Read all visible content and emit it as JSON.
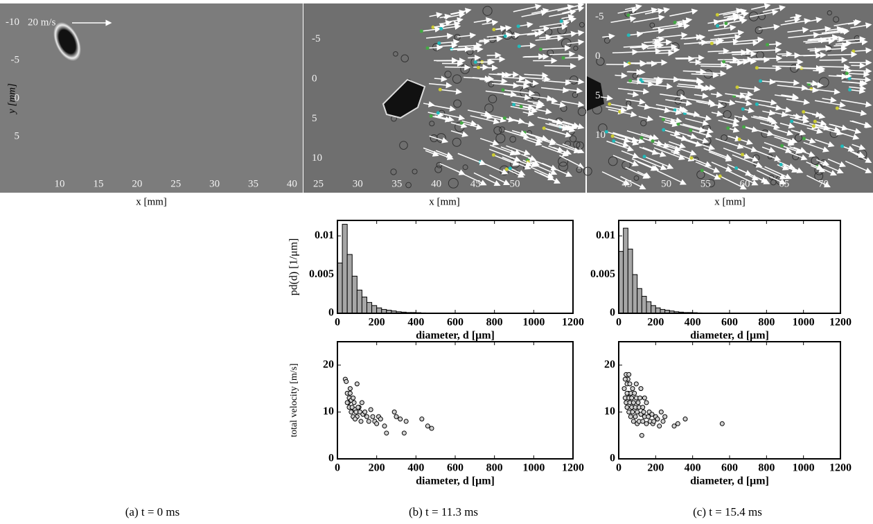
{
  "chart_data": [
    {
      "type": "image",
      "caption": "(a) t = 0 ms",
      "xlabel": "x [mm]",
      "ylabel": "y [mm]",
      "annotation": "20 m/s",
      "xlim": [
        2.3,
        41.4
      ],
      "ylim": [
        -12.5,
        12.4
      ],
      "xticks": [
        10,
        15,
        20,
        25,
        30,
        35,
        40
      ],
      "yticks": [
        -10,
        -5,
        0,
        5
      ]
    },
    {
      "type": "image",
      "caption": "(b) t = 11.3 ms",
      "xlabel": "x [mm]",
      "xlim": [
        23.1,
        59.0
      ],
      "ylim": [
        -9.5,
        14.3
      ],
      "xticks": [
        25,
        30,
        35,
        40,
        45,
        50
      ],
      "yticks": [
        -5,
        0,
        5,
        10
      ]
    },
    {
      "type": "image",
      "caption": "(c) t = 15.4 ms",
      "xlabel": "x [mm]",
      "xlim": [
        39.9,
        76.3
      ],
      "ylim": [
        -6.7,
        17.2
      ],
      "xticks": [
        45,
        50,
        55,
        60,
        65,
        70
      ],
      "yticks": [
        -5,
        0,
        5,
        10
      ]
    },
    {
      "type": "histogram",
      "xlabel": "diameter, d [μm]",
      "ylabel": "pd(d) [1/μm]",
      "bins": [
        0,
        25,
        50,
        75,
        100,
        125,
        150,
        175,
        200,
        225,
        250,
        275,
        300,
        325,
        350,
        375,
        400,
        425,
        450
      ],
      "values": [
        0.0065,
        0.0115,
        0.0076,
        0.0048,
        0.003,
        0.0021,
        0.0014,
        0.001,
        0.0007,
        0.0005,
        0.0004,
        0.0003,
        0.0002,
        0.00015,
        0.0001,
        0.0001,
        8e-05,
        5e-05
      ],
      "xlim": [
        0,
        1200
      ],
      "ylim": [
        0,
        0.012
      ],
      "xticks": [
        0,
        200,
        400,
        600,
        800,
        1000,
        1200
      ],
      "yticks": [
        0,
        0.005,
        0.01
      ]
    },
    {
      "type": "histogram",
      "xlabel": "diameter, d [μm]",
      "bins": [
        0,
        25,
        50,
        75,
        100,
        125,
        150,
        175,
        200,
        225,
        250,
        275,
        300,
        325,
        350,
        375,
        400,
        425,
        450
      ],
      "values": [
        0.008,
        0.011,
        0.0083,
        0.005,
        0.0032,
        0.0022,
        0.0015,
        0.001,
        0.0007,
        0.0005,
        0.0004,
        0.0003,
        0.0002,
        0.00015,
        0.0001,
        0.0001,
        8e-05,
        5e-05
      ],
      "xlim": [
        0,
        1200
      ],
      "ylim": [
        0,
        0.012
      ],
      "xticks": [
        0,
        200,
        400,
        600,
        800,
        1000,
        1200
      ],
      "yticks": [
        0,
        0.005,
        0.01
      ]
    },
    {
      "type": "scatter",
      "xlabel": "diameter, d [μm]",
      "ylabel": "total velocity [m/s]",
      "x": [
        40,
        45,
        50,
        55,
        60,
        60,
        65,
        70,
        70,
        75,
        80,
        80,
        85,
        90,
        95,
        100,
        100,
        110,
        115,
        120,
        125,
        130,
        140,
        150,
        160,
        170,
        180,
        190,
        200,
        210,
        220,
        240,
        250,
        290,
        300,
        320,
        340,
        350,
        430,
        460,
        480,
        50,
        65,
        90,
        105
      ],
      "values": [
        17,
        16.5,
        14,
        12,
        13,
        11,
        15,
        12.5,
        10,
        11,
        9,
        13,
        12,
        10.5,
        10,
        16,
        9,
        11,
        10,
        8,
        12,
        9.5,
        10,
        9,
        8,
        10.5,
        9,
        8,
        7.5,
        9,
        8.5,
        7,
        5.5,
        10,
        9,
        8.5,
        5.5,
        8,
        8.5,
        7,
        6.5,
        12,
        14,
        8.5,
        11
      ],
      "xlim": [
        0,
        1200
      ],
      "ylim": [
        0,
        25
      ],
      "xticks": [
        0,
        200,
        400,
        600,
        800,
        1000,
        1200
      ],
      "yticks": [
        0,
        10,
        20
      ]
    },
    {
      "type": "scatter",
      "xlabel": "diameter, d [μm]",
      "x": [
        30,
        35,
        40,
        40,
        45,
        45,
        50,
        50,
        55,
        55,
        60,
        60,
        65,
        65,
        70,
        70,
        75,
        75,
        80,
        80,
        85,
        90,
        90,
        95,
        100,
        100,
        105,
        110,
        110,
        115,
        120,
        125,
        130,
        130,
        135,
        140,
        150,
        150,
        160,
        165,
        170,
        180,
        185,
        190,
        200,
        210,
        220,
        230,
        240,
        250,
        300,
        320,
        360,
        560,
        35,
        45,
        55,
        120,
        140,
        95
      ],
      "values": [
        15,
        13,
        18,
        12,
        16,
        11,
        17,
        14,
        13,
        10,
        16,
        12,
        14,
        9,
        13,
        11,
        15,
        10,
        12,
        8,
        14,
        11,
        9,
        13,
        10,
        7.5,
        12,
        11,
        8,
        13,
        9.5,
        5,
        11,
        8,
        10,
        9,
        12,
        7.5,
        9,
        10,
        8,
        9.5,
        7.5,
        8,
        9,
        8.5,
        7,
        10,
        8,
        9,
        7,
        7.5,
        8.5,
        7.5,
        17,
        14,
        18,
        15,
        13,
        16
      ],
      "xlim": [
        0,
        1200
      ],
      "ylim": [
        0,
        25
      ],
      "xticks": [
        0,
        200,
        400,
        600,
        800,
        1000,
        1200
      ],
      "yticks": [
        0,
        10,
        20
      ]
    }
  ]
}
